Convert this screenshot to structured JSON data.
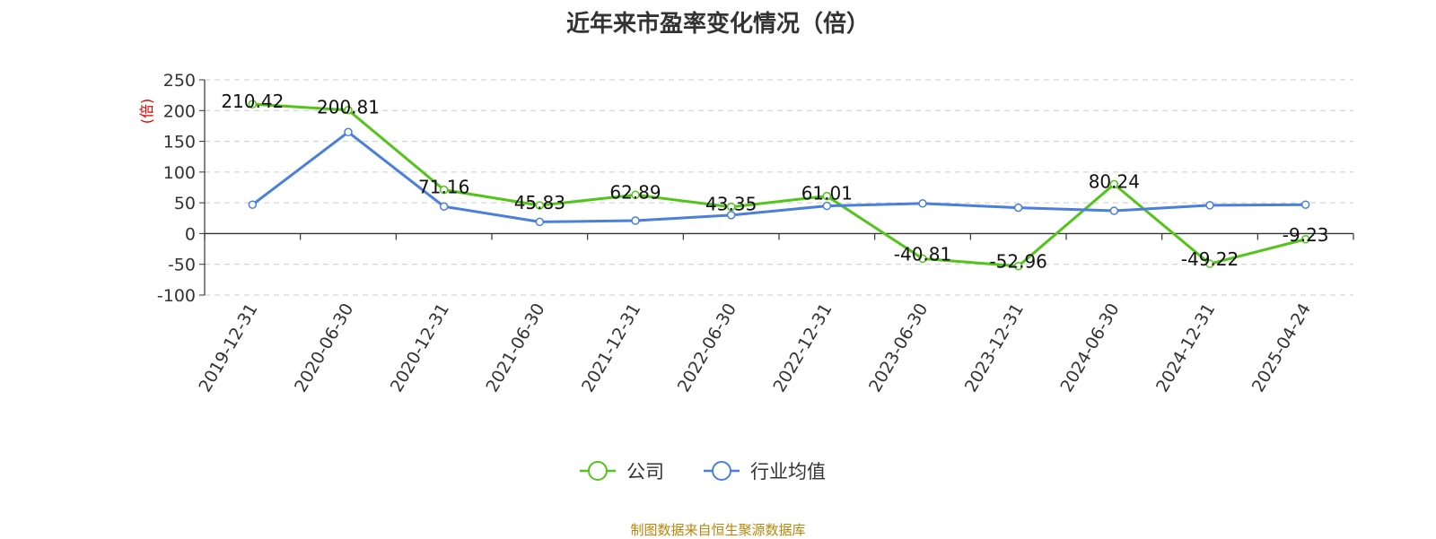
{
  "title": "近年来市盈率变化情况（倍）",
  "source": "制图数据来自恒生聚源数据库",
  "chart_data": {
    "type": "line",
    "title": "近年来市盈率变化情况（倍）",
    "ylabel": "(倍)",
    "xlabel": "",
    "categories": [
      "2019-12-31",
      "2020-06-30",
      "2020-12-31",
      "2021-06-30",
      "2021-12-31",
      "2022-06-30",
      "2022-12-31",
      "2023-06-30",
      "2023-12-31",
      "2024-06-30",
      "2024-12-31",
      "2025-04-24"
    ],
    "ylim": [
      -100,
      250
    ],
    "yticks": [
      250,
      200,
      150,
      100,
      50,
      0,
      -50,
      -100
    ],
    "grid": true,
    "legend_position": "bottom-center",
    "series": [
      {
        "name": "公司",
        "color": "#52c41a",
        "values": [
          210.42,
          200.81,
          71.16,
          45.83,
          62.89,
          43.35,
          61.01,
          -40.81,
          -52.96,
          80.24,
          -49.22,
          -9.23
        ],
        "labels": [
          "210.42",
          "200.81",
          "71.16",
          "45.83",
          "62.89",
          "43.35",
          "61.01",
          "-40.81",
          "-52.96",
          "80.24",
          "-49.22",
          "-9.23"
        ]
      },
      {
        "name": "行业均值",
        "color": "#4a7fdc",
        "values": [
          47,
          165,
          44,
          19,
          21,
          30,
          45,
          49,
          42,
          37,
          46,
          47
        ]
      }
    ]
  }
}
